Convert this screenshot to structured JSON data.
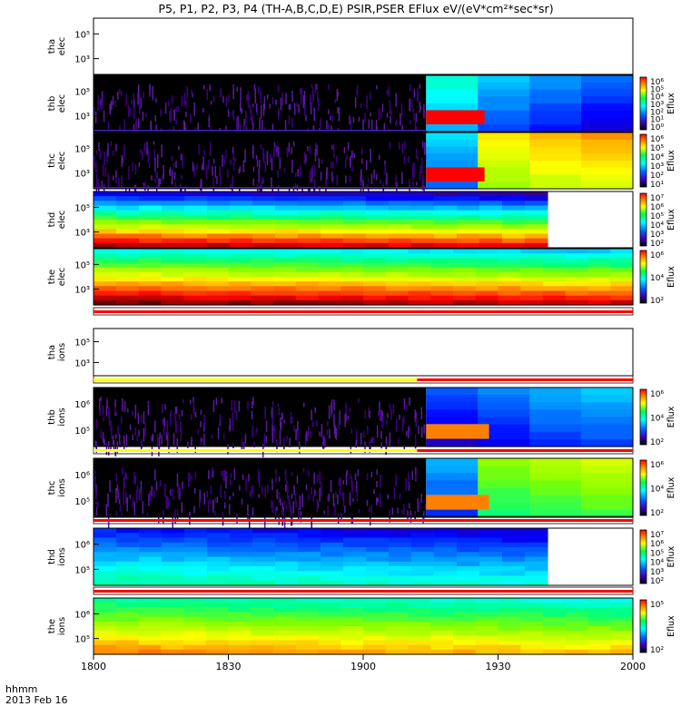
{
  "chart_data": {
    "type": "heatmap",
    "title": "P5, P1, P2, P3, P4 (TH-A,B,C,D,E) PSIR,PSER EFlux eV/(eV*cm²*sec*sr)",
    "x_axis": {
      "label_line1": "hhmm",
      "label_line2": "2013 Feb 16",
      "tick_labels": [
        "1800",
        "1830",
        "1900",
        "1930",
        "2000"
      ],
      "range_hhmm": [
        "1800",
        "2000"
      ]
    },
    "colorbar_label": "Eflux",
    "colormap": [
      "#5a0000",
      "#ff0000",
      "#ff8000",
      "#ffff00",
      "#80ff00",
      "#00ff80",
      "#00ffff",
      "#0080ff",
      "#0000ff",
      "#3c0080",
      "#000000"
    ],
    "panels": [
      {
        "label": "tha elec",
        "y_ticks": [
          "10⁵",
          "10³"
        ],
        "cb_ticks": [],
        "mode": "empty",
        "end_min": 120
      },
      {
        "label": "thb elec",
        "y_ticks": [
          "10⁵",
          "10³"
        ],
        "cb_ticks": [
          "10⁶",
          "10⁵",
          "10⁴",
          "10³",
          "10²",
          "10¹",
          "10⁰"
        ],
        "mode": "noise",
        "switch_min": 74,
        "end_min": 120,
        "right_levels": [
          0.62,
          0.7,
          0.74,
          0.78
        ],
        "spot_end_min": 87
      },
      {
        "label": "thc elec",
        "y_ticks": [
          "10⁵",
          "10³"
        ],
        "cb_ticks": [
          "10⁶",
          "10⁵",
          "10⁴",
          "10³",
          "10²",
          "10¹"
        ],
        "mode": "noise",
        "switch_min": 74,
        "end_min": 120,
        "right_levels": [
          0.68,
          0.34,
          0.3,
          0.28
        ],
        "spot_end_min": 87
      },
      {
        "label": "thd elec",
        "y_ticks": [
          "10⁵",
          "10³"
        ],
        "cb_ticks": [
          "10⁷",
          "10⁶",
          "10⁵",
          "10⁴",
          "10³",
          "10²"
        ],
        "mode": "spectrum",
        "end_min": 101,
        "low_e": 0.05,
        "high_e": 0.82
      },
      {
        "label": "the elec",
        "y_ticks": [
          "10⁵",
          "10³"
        ],
        "cb_ticks": [
          "10⁶",
          "10⁴",
          "10²"
        ],
        "mode": "spectrum",
        "end_min": 120,
        "low_e": 0.02,
        "high_e": 0.58
      },
      {
        "label": "tha ions",
        "y_ticks": [
          "10⁵",
          "10³"
        ],
        "cb_ticks": [],
        "mode": "empty",
        "end_min": 120
      },
      {
        "label": "thb ions",
        "y_ticks": [
          "10⁶",
          "10⁵"
        ],
        "cb_ticks": [
          "10⁶",
          "10⁴",
          "10²"
        ],
        "mode": "noise",
        "switch_min": 74,
        "end_min": 120,
        "right_levels": [
          0.8,
          0.76,
          0.72,
          0.7
        ],
        "spot_end_min": 88
      },
      {
        "label": "thc ions",
        "y_ticks": [
          "10⁶",
          "10⁵"
        ],
        "cb_ticks": [
          "10⁶",
          "10⁴",
          "10²"
        ],
        "mode": "noise",
        "switch_min": 74,
        "end_min": 120,
        "right_levels": [
          0.72,
          0.45,
          0.42,
          0.4
        ],
        "spot_end_min": 88
      },
      {
        "label": "thd ions",
        "y_ticks": [
          "10⁶",
          "10⁵"
        ],
        "cb_ticks": [
          "10⁷",
          "10⁶",
          "10⁵",
          "10⁴",
          "10³",
          "10²"
        ],
        "mode": "spectrum",
        "end_min": 101,
        "low_e": 0.52,
        "high_e": 0.78
      },
      {
        "label": "the ions",
        "y_ticks": [
          "10⁶",
          "10⁵"
        ],
        "cb_ticks": [
          "10⁵",
          "10²"
        ],
        "mode": "spectrum",
        "end_min": 120,
        "low_e": 0.2,
        "high_e": 0.52
      }
    ],
    "status_bars": [
      {
        "after_panel": 4,
        "segments": [
          {
            "from_min": 0,
            "to_min": 120,
            "color": "#ff0000"
          }
        ]
      },
      {
        "after_panel": 5,
        "segments": [
          {
            "from_min": 0,
            "to_min": 72,
            "color": "#ffff00"
          },
          {
            "from_min": 72,
            "to_min": 120,
            "color": "#ff0000"
          }
        ]
      },
      {
        "after_panel": 6,
        "segments": [
          {
            "from_min": 0,
            "to_min": 72,
            "color": "#ffff00"
          },
          {
            "from_min": 72,
            "to_min": 120,
            "color": "#ff0000"
          }
        ]
      },
      {
        "after_panel": 7,
        "segments": [
          {
            "from_min": 0,
            "to_min": 120,
            "color": "#ff0000"
          }
        ]
      },
      {
        "after_panel": 8,
        "segments": [
          {
            "from_min": 0,
            "to_min": 120,
            "color": "#ff0000"
          }
        ]
      }
    ]
  }
}
